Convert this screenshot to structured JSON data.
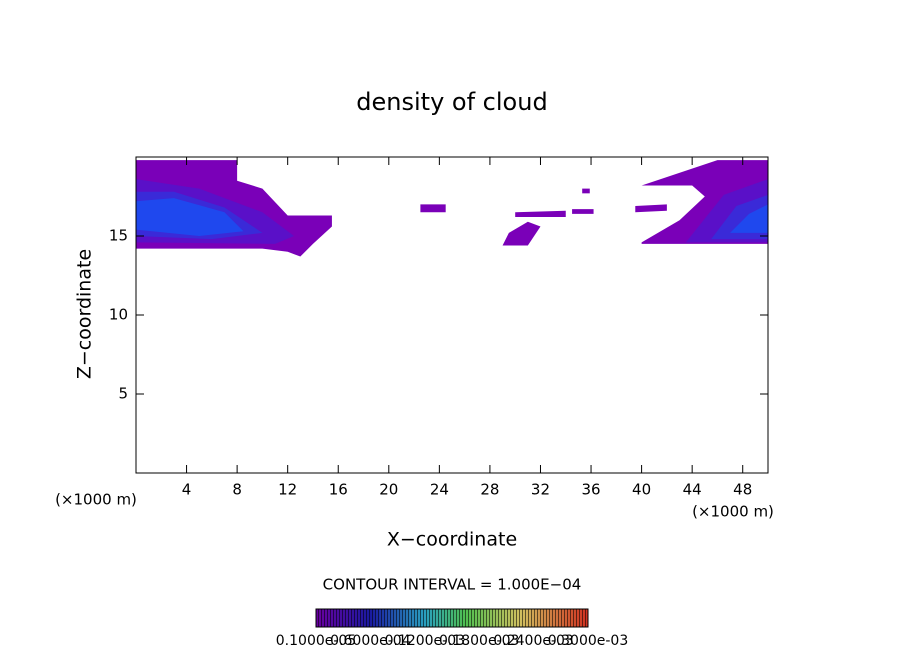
{
  "chart_data": {
    "type": "contour",
    "title": "density of cloud",
    "x_label": "X−coordinate",
    "y_label": "Z−coordinate",
    "x_unit_left": "(×1000 m)",
    "x_unit_right": "(×1000 m)",
    "contour_note": "CONTOUR INTERVAL = 1.000E−04",
    "xlim": [
      0,
      50
    ],
    "ylim": [
      0,
      20
    ],
    "xticks": [
      4,
      8,
      12,
      16,
      20,
      24,
      28,
      32,
      36,
      40,
      44,
      48
    ],
    "yticks": [
      5,
      10,
      15
    ],
    "regions": [
      {
        "color": "#7a00b8",
        "x": [
          0,
          8,
          8,
          10,
          12,
          15.5,
          15.5,
          14,
          13,
          12,
          10,
          0
        ],
        "y": [
          19.8,
          19.8,
          18.5,
          18,
          16.3,
          16.3,
          15.6,
          14.5,
          13.7,
          14,
          14.2,
          14.2
        ]
      },
      {
        "color": "#5a10c8",
        "x": [
          0,
          5,
          10,
          12.5,
          11,
          0
        ],
        "y": [
          18.6,
          18,
          16.5,
          15,
          14.5,
          14.6
        ]
      },
      {
        "color": "#3a2ad8",
        "x": [
          0,
          3,
          7,
          10,
          6,
          0
        ],
        "y": [
          17.8,
          17.8,
          16.8,
          15.2,
          14.8,
          15
        ]
      },
      {
        "color": "#1f48ee",
        "x": [
          0,
          3,
          7,
          8.5,
          5,
          0
        ],
        "y": [
          17.2,
          17.4,
          16.5,
          15.3,
          15,
          15.4
        ]
      },
      {
        "color": "#7a00b8",
        "x": [
          40,
          50,
          50,
          46,
          40,
          44,
          45,
          43,
          40
        ],
        "y": [
          14.5,
          14.5,
          19.8,
          19.8,
          18.2,
          18.2,
          17.5,
          16,
          14.6
        ]
      },
      {
        "color": "#5a10c8",
        "x": [
          43.5,
          50,
          50,
          46.5
        ],
        "y": [
          14.6,
          14.6,
          18.6,
          17.6
        ]
      },
      {
        "color": "#3a2ad8",
        "x": [
          45.5,
          50,
          50,
          47.5
        ],
        "y": [
          14.8,
          14.8,
          17.6,
          16.9
        ]
      },
      {
        "color": "#1f48ee",
        "x": [
          47,
          50,
          50,
          48.5
        ],
        "y": [
          15.2,
          15.2,
          17,
          16.4
        ]
      },
      {
        "color": "#7a00b8",
        "x": [
          22.5,
          24.5,
          24.5,
          22.5
        ],
        "y": [
          16.5,
          16.5,
          17,
          17
        ]
      },
      {
        "color": "#7a00b8",
        "x": [
          29,
          31,
          32,
          31,
          29.5
        ],
        "y": [
          14.4,
          14.4,
          15.6,
          15.9,
          15.2
        ]
      },
      {
        "color": "#7a00b8",
        "x": [
          30,
          34,
          34,
          30
        ],
        "y": [
          16.2,
          16.2,
          16.6,
          16.5
        ]
      },
      {
        "color": "#7a00b8",
        "x": [
          34.5,
          36.2,
          36.2,
          34.5
        ],
        "y": [
          16.4,
          16.4,
          16.7,
          16.7
        ]
      },
      {
        "color": "#7a00b8",
        "x": [
          35.3,
          35.9,
          35.9,
          35.3
        ],
        "y": [
          17.7,
          17.7,
          18,
          18
        ]
      },
      {
        "color": "#7a00b8",
        "x": [
          39.5,
          42,
          42,
          39.5
        ],
        "y": [
          16.5,
          16.6,
          17,
          16.9
        ]
      }
    ],
    "colorbar_labels": [
      "0.1000e-05",
      "0.6000e-04",
      "0.1200e-03",
      "0.1800e-03",
      "0.2400e-03",
      "0.3000e-03"
    ]
  }
}
